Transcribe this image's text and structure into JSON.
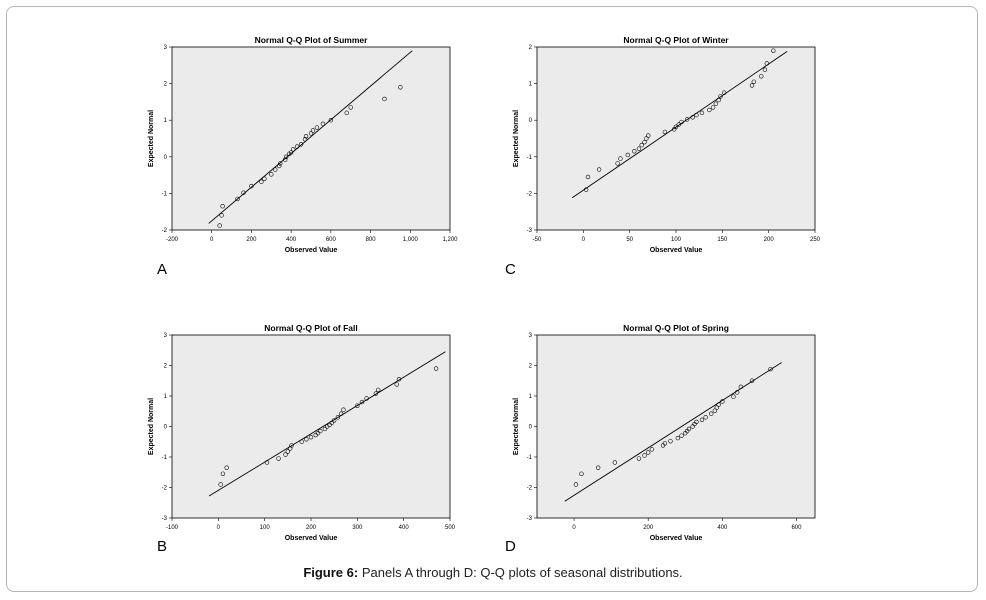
{
  "figure": {
    "caption_label": "Figure 6:",
    "caption_text": " Panels A through D: Q-Q plots of seasonal distributions."
  },
  "chart_data": [
    {
      "type": "scatter",
      "panel": "A",
      "title": "Normal Q-Q Plot of Summer",
      "xlabel": "Observed Value",
      "ylabel": "Expected Normal",
      "xlim": [
        -200,
        1200
      ],
      "ylim": [
        -2,
        3
      ],
      "xticks": [
        "-200",
        "0",
        "200",
        "400",
        "600",
        "800",
        "1,000",
        "1,200"
      ],
      "xtick_values": [
        -200,
        0,
        200,
        400,
        600,
        800,
        1000,
        1200
      ],
      "yticks": [
        "-2",
        "-1",
        "0",
        "1",
        "2",
        "3"
      ],
      "ytick_values": [
        -2,
        -1,
        0,
        1,
        2,
        3
      ],
      "line": {
        "x": [
          -15,
          1010
        ],
        "y": [
          -1.82,
          2.9
        ]
      },
      "points": [
        [
          40,
          -1.88
        ],
        [
          50,
          -1.6
        ],
        [
          55,
          -1.35
        ],
        [
          130,
          -1.15
        ],
        [
          160,
          -0.98
        ],
        [
          200,
          -0.8
        ],
        [
          250,
          -0.68
        ],
        [
          265,
          -0.6
        ],
        [
          300,
          -0.48
        ],
        [
          320,
          -0.35
        ],
        [
          340,
          -0.25
        ],
        [
          345,
          -0.18
        ],
        [
          370,
          -0.08
        ],
        [
          375,
          0.0
        ],
        [
          390,
          0.08
        ],
        [
          400,
          0.12
        ],
        [
          410,
          0.2
        ],
        [
          430,
          0.28
        ],
        [
          450,
          0.34
        ],
        [
          470,
          0.48
        ],
        [
          475,
          0.56
        ],
        [
          500,
          0.64
        ],
        [
          510,
          0.72
        ],
        [
          530,
          0.8
        ],
        [
          560,
          0.9
        ],
        [
          600,
          1.0
        ],
        [
          680,
          1.2
        ],
        [
          700,
          1.35
        ],
        [
          870,
          1.58
        ],
        [
          950,
          1.9
        ]
      ]
    },
    {
      "type": "scatter",
      "panel": "C",
      "title": "Normal Q-Q Plot of Winter",
      "xlabel": "Observed Value",
      "ylabel": "Expected Normal",
      "xlim": [
        -50,
        250
      ],
      "ylim": [
        -3,
        2
      ],
      "xticks": [
        "-50",
        "0",
        "50",
        "100",
        "150",
        "200",
        "250"
      ],
      "xtick_values": [
        -50,
        0,
        50,
        100,
        150,
        200,
        250
      ],
      "yticks": [
        "-3",
        "-2",
        "-1",
        "0",
        "1",
        "2"
      ],
      "ytick_values": [
        -3,
        -2,
        -1,
        0,
        1,
        2
      ],
      "line": {
        "x": [
          -12,
          220
        ],
        "y": [
          -2.12,
          1.88
        ]
      },
      "points": [
        [
          3,
          -1.9
        ],
        [
          5,
          -1.55
        ],
        [
          17,
          -1.35
        ],
        [
          37,
          -1.18
        ],
        [
          40,
          -1.05
        ],
        [
          48,
          -0.95
        ],
        [
          55,
          -0.85
        ],
        [
          60,
          -0.78
        ],
        [
          63,
          -0.68
        ],
        [
          66,
          -0.6
        ],
        [
          68,
          -0.5
        ],
        [
          70,
          -0.42
        ],
        [
          88,
          -0.32
        ],
        [
          98,
          -0.25
        ],
        [
          100,
          -0.18
        ],
        [
          103,
          -0.12
        ],
        [
          106,
          -0.05
        ],
        [
          112,
          0.02
        ],
        [
          118,
          0.08
        ],
        [
          122,
          0.14
        ],
        [
          128,
          0.2
        ],
        [
          136,
          0.28
        ],
        [
          140,
          0.35
        ],
        [
          143,
          0.45
        ],
        [
          146,
          0.55
        ],
        [
          148,
          0.65
        ],
        [
          152,
          0.75
        ],
        [
          182,
          0.95
        ],
        [
          184,
          1.05
        ],
        [
          192,
          1.2
        ],
        [
          196,
          1.38
        ],
        [
          198,
          1.55
        ],
        [
          205,
          1.9
        ]
      ]
    },
    {
      "type": "scatter",
      "panel": "B",
      "title": "Normal Q-Q Plot of Fall",
      "xlabel": "Observed Value",
      "ylabel": "Expected Normal",
      "xlim": [
        -100,
        500
      ],
      "ylim": [
        -3,
        3
      ],
      "xticks": [
        "-100",
        "0",
        "100",
        "200",
        "300",
        "400",
        "500"
      ],
      "xtick_values": [
        -100,
        0,
        100,
        200,
        300,
        400,
        500
      ],
      "yticks": [
        "-3",
        "-2",
        "-1",
        "0",
        "1",
        "2",
        "3"
      ],
      "ytick_values": [
        -3,
        -2,
        -1,
        0,
        1,
        2,
        3
      ],
      "line": {
        "x": [
          -20,
          490
        ],
        "y": [
          -2.28,
          2.45
        ]
      },
      "points": [
        [
          5,
          -1.9
        ],
        [
          10,
          -1.55
        ],
        [
          18,
          -1.35
        ],
        [
          105,
          -1.18
        ],
        [
          130,
          -1.05
        ],
        [
          145,
          -0.92
        ],
        [
          150,
          -0.82
        ],
        [
          155,
          -0.72
        ],
        [
          158,
          -0.62
        ],
        [
          180,
          -0.5
        ],
        [
          190,
          -0.42
        ],
        [
          200,
          -0.35
        ],
        [
          210,
          -0.28
        ],
        [
          215,
          -0.22
        ],
        [
          220,
          -0.15
        ],
        [
          230,
          -0.08
        ],
        [
          235,
          0.0
        ],
        [
          240,
          0.05
        ],
        [
          245,
          0.12
        ],
        [
          250,
          0.2
        ],
        [
          258,
          0.3
        ],
        [
          265,
          0.42
        ],
        [
          270,
          0.55
        ],
        [
          300,
          0.68
        ],
        [
          310,
          0.8
        ],
        [
          320,
          0.92
        ],
        [
          340,
          1.08
        ],
        [
          345,
          1.2
        ],
        [
          385,
          1.38
        ],
        [
          390,
          1.55
        ],
        [
          470,
          1.9
        ]
      ]
    },
    {
      "type": "scatter",
      "panel": "D",
      "title": "Normal Q-Q Plot of Spring",
      "xlabel": "Observed Value",
      "ylabel": "Expected Normal",
      "xlim": [
        -100,
        650
      ],
      "ylim": [
        -3,
        3
      ],
      "xticks": [
        "0",
        "200",
        "400",
        "600"
      ],
      "xtick_values": [
        0,
        200,
        400,
        600
      ],
      "yticks": [
        "-3",
        "-2",
        "-1",
        "0",
        "1",
        "2",
        "3"
      ],
      "ytick_values": [
        -3,
        -2,
        -1,
        0,
        1,
        2,
        3
      ],
      "line": {
        "x": [
          -25,
          560
        ],
        "y": [
          -2.45,
          2.1
        ]
      },
      "points": [
        [
          5,
          -1.9
        ],
        [
          20,
          -1.55
        ],
        [
          65,
          -1.35
        ],
        [
          110,
          -1.18
        ],
        [
          175,
          -1.05
        ],
        [
          190,
          -0.95
        ],
        [
          200,
          -0.85
        ],
        [
          210,
          -0.75
        ],
        [
          240,
          -0.62
        ],
        [
          245,
          -0.55
        ],
        [
          260,
          -0.48
        ],
        [
          280,
          -0.38
        ],
        [
          290,
          -0.3
        ],
        [
          300,
          -0.22
        ],
        [
          305,
          -0.15
        ],
        [
          310,
          -0.08
        ],
        [
          320,
          0.0
        ],
        [
          325,
          0.08
        ],
        [
          330,
          0.15
        ],
        [
          345,
          0.22
        ],
        [
          355,
          0.3
        ],
        [
          370,
          0.42
        ],
        [
          380,
          0.52
        ],
        [
          385,
          0.62
        ],
        [
          390,
          0.72
        ],
        [
          400,
          0.82
        ],
        [
          430,
          0.98
        ],
        [
          440,
          1.12
        ],
        [
          450,
          1.3
        ],
        [
          480,
          1.5
        ],
        [
          530,
          1.88
        ]
      ]
    }
  ],
  "panel_letters": [
    "A",
    "C",
    "B",
    "D"
  ]
}
